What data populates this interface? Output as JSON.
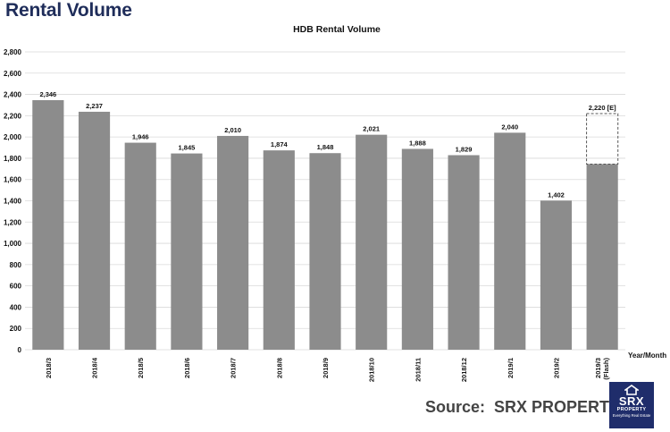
{
  "page": {
    "title": "Rental Volume"
  },
  "source": {
    "text": "Source:  SRX PROPERTY"
  },
  "logo": {
    "name": "SRX",
    "sub": "PROPERTY",
    "tagline": "Everything Real Estate",
    "icon": "house-icon"
  },
  "colors": {
    "bar": "#8c8c8c",
    "title": "#1f2d5a",
    "logo_bg": "#1f2d6b",
    "grid": "#d9d9d9"
  },
  "chart_data": {
    "type": "bar",
    "title": "HDB Rental Volume",
    "xlabel": "Year/Month",
    "ylabel": "",
    "ylim": [
      0,
      2800
    ],
    "yticks": [
      0,
      200,
      400,
      600,
      800,
      1000,
      1200,
      1400,
      1600,
      1800,
      2000,
      2200,
      2400,
      2600,
      2800
    ],
    "ytick_labels": [
      "0",
      "200",
      "400",
      "600",
      "800",
      "1,000",
      "1,200",
      "1,400",
      "1,600",
      "1,800",
      "2,000",
      "2,200",
      "2,400",
      "2,600",
      "2,800"
    ],
    "grid": true,
    "categories": [
      "2018/3",
      "2018/4",
      "2018/5",
      "2018/6",
      "2018/7",
      "2018/8",
      "2018/9",
      "2018/10",
      "2018/11",
      "2018/12",
      "2019/1",
      "2019/2",
      "2019/3 (Flash)"
    ],
    "values": [
      2346,
      2237,
      1946,
      1845,
      2010,
      1874,
      1848,
      2021,
      1888,
      1829,
      2040,
      1402,
      1745
    ],
    "data_labels": [
      "2,346",
      "2,237",
      "1,946",
      "1,845",
      "2,010",
      "1,874",
      "1,848",
      "2,021",
      "1,888",
      "1,829",
      "2,040",
      "1,402",
      ""
    ],
    "estimate": {
      "category": "2019/3 (Flash)",
      "value": 2220,
      "label": "2,220 [E]"
    }
  }
}
